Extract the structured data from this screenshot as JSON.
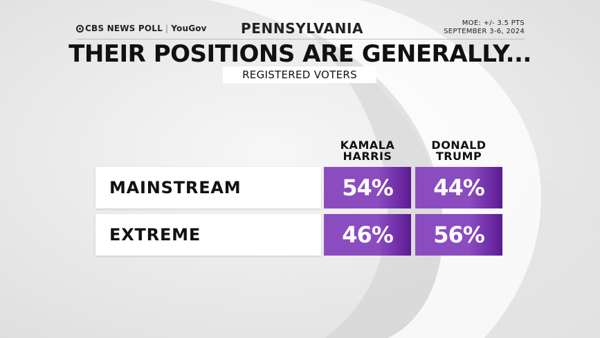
{
  "header": {
    "logo_brand": "CBS NEWS POLL",
    "logo_partner": "YouGov",
    "state": "PENNSYLVANIA",
    "moe": "MOE: +/- 3.5 PTS",
    "dates": "SEPTEMBER 3-6, 2024"
  },
  "chart_data": {
    "type": "table",
    "title": "THEIR POSITIONS ARE GENERALLY...",
    "subtitle": "REGISTERED VOTERS",
    "columns": [
      {
        "line1": "KAMALA",
        "line2": "HARRIS"
      },
      {
        "line1": "DONALD",
        "line2": "TRUMP"
      }
    ],
    "rows": [
      {
        "label": "MAINSTREAM",
        "values": [
          54,
          44
        ],
        "display": [
          "54%",
          "44%"
        ]
      },
      {
        "label": "EXTREME",
        "values": [
          46,
          56
        ],
        "display": [
          "46%",
          "56%"
        ]
      }
    ],
    "unit": "%",
    "cell_color": "#8b4cc0"
  }
}
